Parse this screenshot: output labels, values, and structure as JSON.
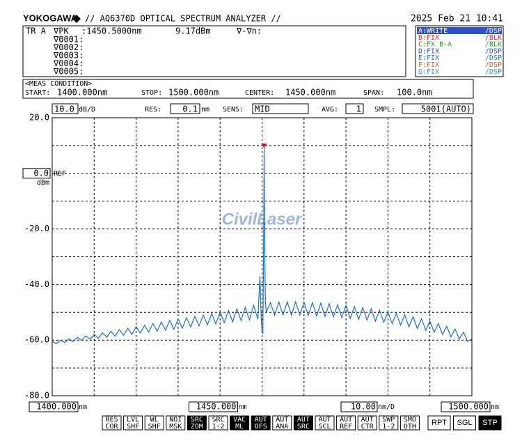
{
  "header": {
    "brand": "YOKOGAWA",
    "title": "// AQ6370D OPTICAL SPECTRUM ANALYZER //",
    "datetime": "2025 Feb 21 10:41"
  },
  "marker_panel": {
    "trace": "TR A",
    "peak_label": "∇PK",
    "peak_wl": ":1450.5000nm",
    "peak_level": "9.17dBm",
    "delta": "∇-∇n:",
    "markers": [
      "∇0001:",
      "∇0002:",
      "∇0003:",
      "∇0004:",
      "∇0005:"
    ]
  },
  "traces": [
    {
      "name": "A:WRITE",
      "mode": "/DSP",
      "color": "#ffffff",
      "bg": "#2f52c8"
    },
    {
      "name": "B:FIX",
      "mode": "/BLK",
      "color": "#d83030",
      "bg": "#ffffff"
    },
    {
      "name": "C:FX B-A",
      "mode": "/BLK",
      "color": "#2a9a2a",
      "bg": "#ffffff"
    },
    {
      "name": "D:FIX",
      "mode": "/DSP",
      "color": "#3050c0",
      "bg": "#ffffff"
    },
    {
      "name": "E:FIX",
      "mode": "/DSP",
      "color": "#2080c0",
      "bg": "#ffffff"
    },
    {
      "name": "F:FIX",
      "mode": "/DSP",
      "color": "#e06020",
      "bg": "#ffffff"
    },
    {
      "name": "G:FIX",
      "mode": "/DSP",
      "color": "#20a0c0",
      "bg": "#ffffff"
    }
  ],
  "meas": {
    "title": "<MEAS CONDITION>",
    "start_label": "START:",
    "start": "1400.000nm",
    "stop_label": "STOP:",
    "stop": "1500.000nm",
    "center_label": "CENTER:",
    "center": "1450.000nm",
    "span_label": "SPAN:",
    "span": "100.0nm"
  },
  "settings": {
    "scale": "10.0",
    "scale_unit": "dB/D",
    "res_label": "RES:",
    "res": "0.1",
    "res_unit": "nm",
    "sens_label": "SENS:",
    "sens": "MID",
    "avg_label": "AVG:",
    "avg": "1",
    "smpl_label": "SMPL:",
    "smpl": "5001(AUTO)",
    "xdiv": "10.00",
    "xdiv_unit": "nm/D"
  },
  "watermark": "CivilLaser",
  "chart_data": {
    "type": "line",
    "color": "#1f6fc0",
    "grid": true,
    "ref_label": "REF",
    "y_unit": "dBm",
    "x_unit": "nm",
    "xlim": [
      1400,
      1500
    ],
    "ylim": [
      -80,
      20
    ],
    "xticks": [
      {
        "value": 1400,
        "label": "1400.000"
      },
      {
        "value": 1410,
        "label": null
      },
      {
        "value": 1420,
        "label": null
      },
      {
        "value": 1430,
        "label": null
      },
      {
        "value": 1440,
        "label": null
      },
      {
        "value": 1450,
        "label": "1450.000"
      },
      {
        "value": 1460,
        "label": null
      },
      {
        "value": 1470,
        "label": null
      },
      {
        "value": 1480,
        "label": null
      },
      {
        "value": 1490,
        "label": null
      },
      {
        "value": 1500,
        "label": "1500.000"
      }
    ],
    "yticks": [
      {
        "value": -80,
        "label": "-80.0"
      },
      {
        "value": -70,
        "label": null
      },
      {
        "value": -60,
        "label": "-60.0"
      },
      {
        "value": -50,
        "label": null
      },
      {
        "value": -40,
        "label": "-40.0"
      },
      {
        "value": -30,
        "label": null
      },
      {
        "value": -20,
        "label": "-20.0"
      },
      {
        "value": -10,
        "label": null
      },
      {
        "value": 0,
        "label": "0.0"
      },
      {
        "value": 10,
        "label": null
      },
      {
        "value": 20,
        "label": "20.0"
      }
    ],
    "x": [
      1400,
      1401,
      1402,
      1403,
      1404,
      1405,
      1406,
      1407,
      1408,
      1409,
      1410,
      1411,
      1412,
      1413,
      1414,
      1415,
      1416,
      1417,
      1418,
      1419,
      1420,
      1421,
      1422,
      1423,
      1424,
      1425,
      1426,
      1427,
      1428,
      1429,
      1430,
      1431,
      1432,
      1433,
      1434,
      1435,
      1436,
      1437,
      1438,
      1439,
      1440,
      1441,
      1442,
      1443,
      1444,
      1445,
      1446,
      1447,
      1448,
      1449,
      1449.5,
      1449.8,
      1450.0,
      1450.2,
      1450.4,
      1450.5,
      1450.6,
      1450.8,
      1451,
      1452,
      1453,
      1454,
      1455,
      1456,
      1457,
      1458,
      1459,
      1460,
      1461,
      1462,
      1463,
      1464,
      1465,
      1466,
      1467,
      1468,
      1469,
      1470,
      1471,
      1472,
      1473,
      1474,
      1475,
      1476,
      1477,
      1478,
      1479,
      1480,
      1481,
      1482,
      1483,
      1484,
      1485,
      1486,
      1487,
      1488,
      1489,
      1490,
      1491,
      1492,
      1493,
      1494,
      1495,
      1496,
      1497,
      1498,
      1499,
      1500
    ],
    "values": [
      -60.5,
      -61.3,
      -60.0,
      -60.9,
      -59.5,
      -60.5,
      -59.0,
      -60.1,
      -58.5,
      -59.7,
      -57.9,
      -59.3,
      -57.4,
      -59.0,
      -56.8,
      -58.6,
      -56.2,
      -58.3,
      -55.7,
      -57.9,
      -55.2,
      -57.5,
      -54.7,
      -57.1,
      -54.0,
      -56.8,
      -53.5,
      -56.4,
      -52.9,
      -56.1,
      -52.4,
      -55.7,
      -51.9,
      -55.3,
      -51.4,
      -54.9,
      -51.0,
      -54.5,
      -50.5,
      -54.2,
      -49.8,
      -53.8,
      -49.3,
      -53.4,
      -48.7,
      -53.0,
      -48.2,
      -52.7,
      -47.5,
      -52.5,
      -37,
      -52,
      -57,
      -57.5,
      -20,
      9.17,
      -20,
      -46,
      -50,
      -46.5,
      -51.0,
      -46.3,
      -51.0,
      -46.2,
      -51.0,
      -46.2,
      -51.0,
      -46.3,
      -51.1,
      -46.5,
      -51.3,
      -46.7,
      -51.5,
      -46.9,
      -51.7,
      -47.2,
      -51.9,
      -47.5,
      -52.2,
      -47.9,
      -52.5,
      -48.3,
      -52.8,
      -48.7,
      -53.2,
      -49.2,
      -53.6,
      -49.7,
      -54.1,
      -50.3,
      -54.6,
      -50.9,
      -55.2,
      -51.6,
      -55.8,
      -52.3,
      -56.5,
      -53.1,
      -57.2,
      -54.0,
      -58.0,
      -55.0,
      -58.8,
      -56.0,
      -59.6,
      -57.2,
      -60.5,
      -59.5
    ]
  },
  "buttons": [
    {
      "lines": [
        "RES",
        "COR"
      ],
      "active": false
    },
    {
      "lines": [
        "LVL",
        "SHF"
      ],
      "active": false
    },
    {
      "lines": [
        "WL",
        "SHF"
      ],
      "active": false
    },
    {
      "lines": [
        "NOI",
        "MSK"
      ],
      "active": false
    },
    {
      "lines": [
        "SRC",
        "ZOM"
      ],
      "active": true
    },
    {
      "lines": [
        "SRC",
        "1-2"
      ],
      "active": false
    },
    {
      "lines": [
        "VAC",
        "ML"
      ],
      "active": true
    },
    {
      "lines": [
        "AUT",
        "OFS"
      ],
      "active": true
    },
    {
      "lines": [
        "AUT",
        "ANA"
      ],
      "active": false
    },
    {
      "lines": [
        "AUT",
        "SRC"
      ],
      "active": true
    },
    {
      "lines": [
        "AUT",
        "SCL"
      ],
      "active": false
    },
    {
      "lines": [
        "AUT",
        "REF"
      ],
      "active": false
    },
    {
      "lines": [
        "AUT",
        "CTR"
      ],
      "active": false
    },
    {
      "lines": [
        "SWP",
        "1-2"
      ],
      "active": false
    },
    {
      "lines": [
        "SMO",
        "OTH"
      ],
      "active": false
    }
  ],
  "big_buttons": [
    {
      "label": "RPT",
      "active": false
    },
    {
      "label": "SGL",
      "active": false
    },
    {
      "label": "STP",
      "active": true
    }
  ]
}
